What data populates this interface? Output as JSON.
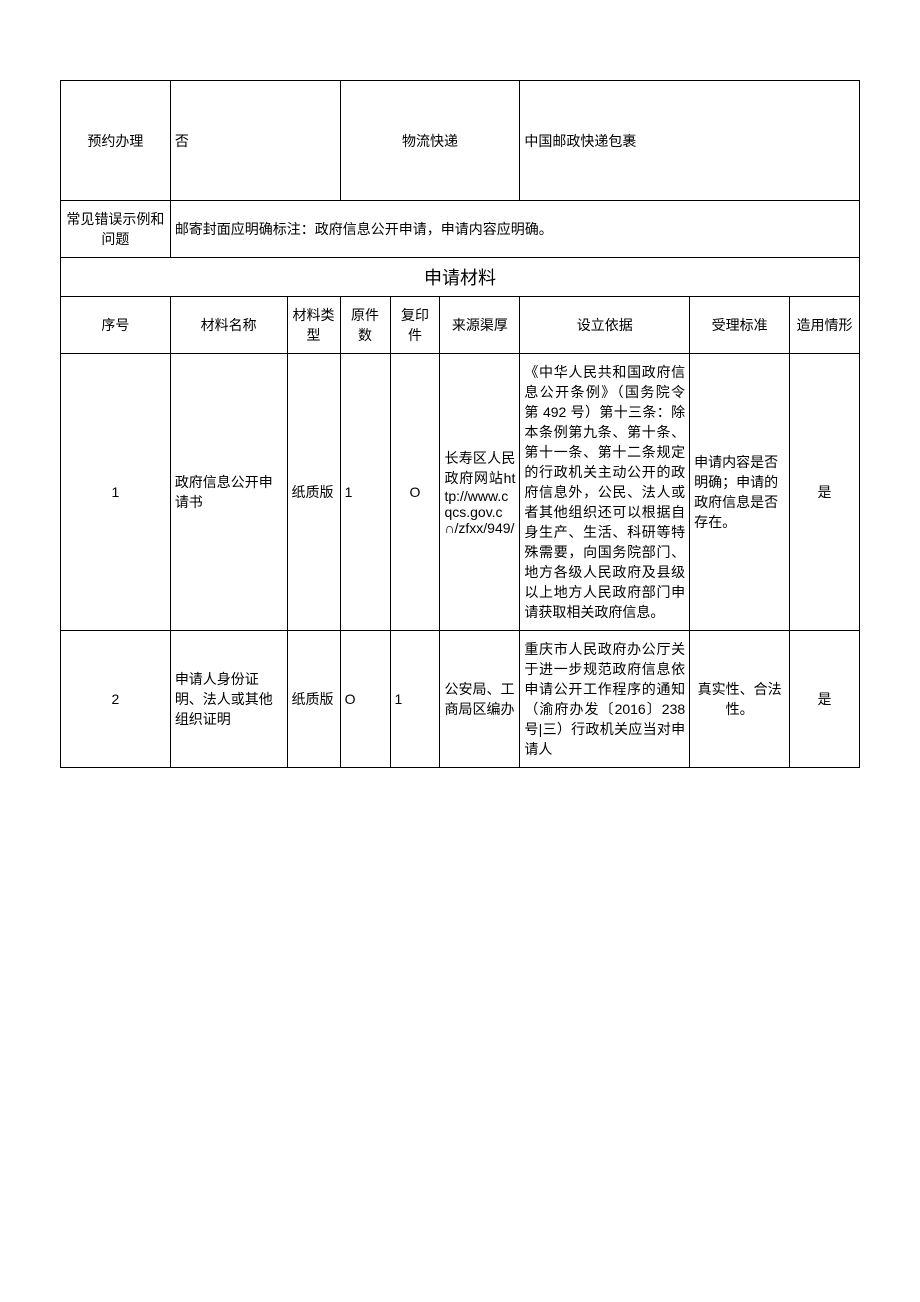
{
  "topRow": {
    "appointmentLabel": "预约办理",
    "appointmentValue": "否",
    "logisticsLabel": "物流快递",
    "logisticsValue": "中国邮政快递包裹"
  },
  "errorRow": {
    "label": "常见错误示例和问题",
    "value": "邮寄封面应明确标注：政府信息公开申请，申请内容应明确。"
  },
  "sectionTitle": "申请材料",
  "headers": {
    "seq": "序号",
    "name": "材料名称",
    "type": "材料类型",
    "origCount": "原件数",
    "copyCount": "复印件",
    "source": "来源渠厚",
    "basis": "设立依据",
    "acceptStd": "受理标准",
    "useCase": "造用情形"
  },
  "rows": [
    {
      "seq": "1",
      "name": "政府信息公开申请书",
      "type": "纸质版",
      "orig": "1",
      "copy": "O",
      "source": "长寿区人民政府网站http://www.cqcs.gov.c∩/zfxx/949/",
      "basis": "《中华人民共和国政府信息公开条例》（国务院令第 492 号）第十三条：除本条例第九条、第十条、第十一条、第十二条规定的行政机关主动公开的政府信息外，公民、法人或者其他组织还可以根据自身生产、生活、科研等特殊需要，向国务院部门、地方各级人民政府及县级以上地方人民政府部门申请获取相关政府信息。",
      "accept": "申请内容是否明确；申请的政府信息是否存在。",
      "use": "是"
    },
    {
      "seq": "2",
      "name": "申请人身份证明、法人或其他组织证明",
      "type": "纸质版",
      "orig": "O",
      "copy": "1",
      "source": "公安局、工商局区编办",
      "basis": "重庆市人民政府办公厅关于进一步规范政府信息依申请公开工作程序的通知（渝府办发〔2016〕238号|三）行政机关应当对申请人",
      "accept": "真实性、合法性。",
      "use": "是"
    }
  ]
}
